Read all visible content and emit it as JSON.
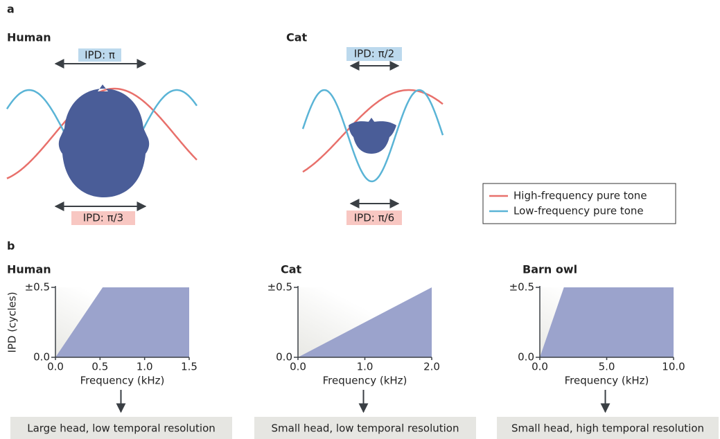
{
  "panel_a": {
    "label": "a",
    "species": [
      {
        "name": "Human",
        "ipd_low": "IPD: π",
        "ipd_high": "IPD: π/3"
      },
      {
        "name": "Cat",
        "ipd_low": "IPD: π/2",
        "ipd_high": "IPD: π/6"
      }
    ],
    "legend": [
      {
        "name": "High-frequency pure tone",
        "color": "#e8706b"
      },
      {
        "name": "Low-frequency pure tone",
        "color": "#5ab4d6"
      }
    ]
  },
  "panel_b": {
    "label": "b",
    "charts": [
      {
        "type": "area",
        "title": "Human",
        "ylabel": "IPD (cycles)",
        "xlabel": "Frequency (kHz)",
        "x": [
          0,
          0.53,
          1.5
        ],
        "values": [
          0,
          0.5,
          0.5
        ],
        "color": "#9ba3cc",
        "xlim": [
          0,
          1.5
        ],
        "ylim": [
          0,
          0.5
        ],
        "xticks": [
          {
            "value": 0,
            "label": "0.0"
          },
          0.5,
          {
            "value": 1,
            "label": "1.0"
          },
          1.5
        ],
        "yticks": [
          {
            "value": 0,
            "label": "0.0"
          },
          {
            "value": 0.5,
            "label": "±0.5"
          }
        ],
        "caption": "Large head, low temporal resolution"
      },
      {
        "type": "area",
        "title": "Cat",
        "xlabel": "Frequency (kHz)",
        "x": [
          0,
          2
        ],
        "values": [
          0,
          0.5
        ],
        "color": "#9ba3cc",
        "xlim": [
          0,
          2
        ],
        "ylim": [
          0,
          0.5
        ],
        "xticks": [
          {
            "value": 0,
            "label": "0.0"
          },
          {
            "value": 1,
            "label": "1.0"
          },
          {
            "value": 2,
            "label": "2.0"
          }
        ],
        "yticks": [
          {
            "value": 0,
            "label": "0.0"
          },
          {
            "value": 0.5,
            "label": "±0.5"
          }
        ],
        "caption": "Small head, low temporal resolution"
      },
      {
        "type": "area",
        "title": "Barn owl",
        "xlabel": "Frequency (kHz)",
        "x": [
          0,
          1.8,
          10
        ],
        "values": [
          0,
          0.5,
          0.5
        ],
        "color": "#9ba3cc",
        "xlim": [
          0,
          10
        ],
        "ylim": [
          0,
          0.5
        ],
        "xticks": [
          {
            "value": 0,
            "label": "0.0"
          },
          {
            "value": 5,
            "label": "5.0"
          },
          {
            "value": 10,
            "label": "10.0"
          }
        ],
        "yticks": [
          {
            "value": 0,
            "label": "0.0"
          },
          {
            "value": 0.5,
            "label": "±0.5"
          }
        ],
        "caption": "Small head, high temporal resolution"
      }
    ]
  }
}
